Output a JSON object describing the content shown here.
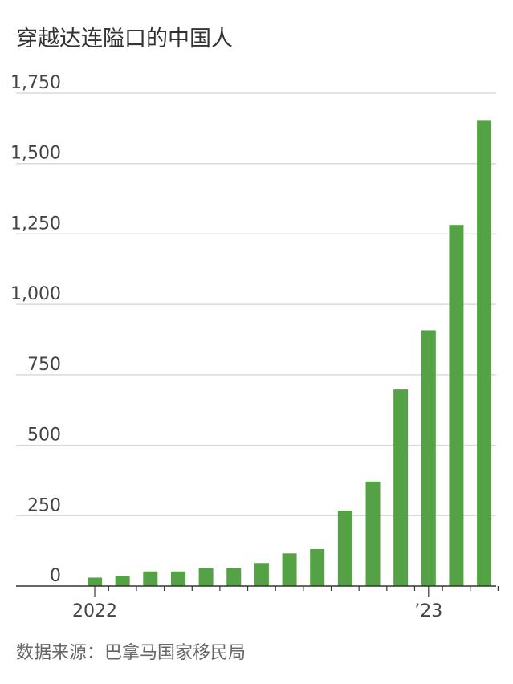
{
  "title": "穿越达连隘口的中国人",
  "source": "数据来源：巴拿马国家移民局",
  "colors": {
    "bar": "#55a145",
    "grid": "#d9d9d9",
    "axis": "#333333"
  },
  "chart_data": {
    "type": "bar",
    "title": "穿越达连隘口的中国人",
    "xlabel": "",
    "ylabel": "",
    "ylim": [
      0,
      1750
    ],
    "yticks": [
      0,
      250,
      500,
      750,
      1000,
      1250,
      1500,
      1750
    ],
    "ytick_labels": [
      "0",
      "250",
      "500",
      "750",
      "1,000",
      "1,250",
      "1,500",
      "1,750"
    ],
    "x_labels": [
      {
        "index": 0,
        "label": "2022"
      },
      {
        "index": 12,
        "label": "’23"
      }
    ],
    "grid": true,
    "values": [
      30,
      35,
      52,
      52,
      63,
      63,
      82,
      116,
      131,
      268,
      371,
      698,
      908,
      1282,
      1652
    ]
  }
}
